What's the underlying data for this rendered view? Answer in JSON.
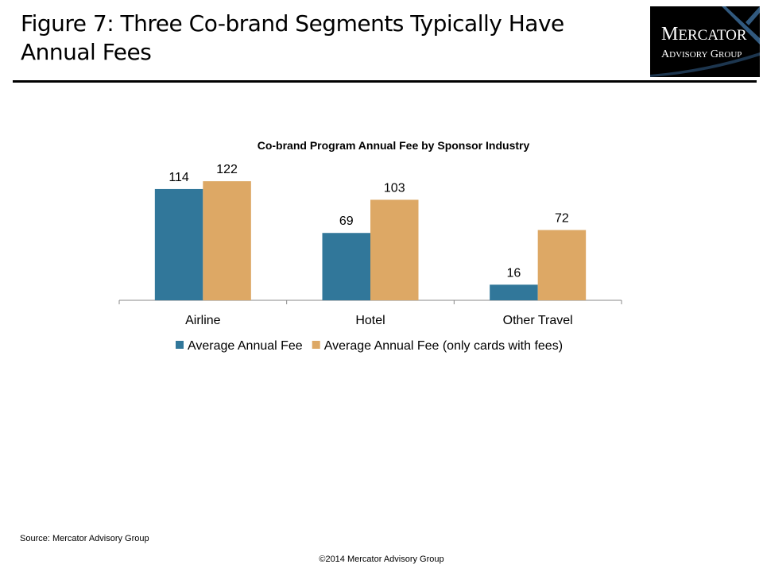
{
  "header": {
    "title": "Figure 7: Three Co-brand Segments Typically Have Annual Fees",
    "logo_text": [
      "Mercator",
      "Advisory Group"
    ]
  },
  "chart_data": {
    "type": "bar",
    "title": "Co-brand Program Annual Fee by Sponsor Industry",
    "categories": [
      "Airline",
      "Hotel",
      "Other Travel"
    ],
    "series": [
      {
        "name": "Average Annual Fee",
        "values": [
          114,
          69,
          16
        ],
        "color": "#31779A"
      },
      {
        "name": "Average Annual Fee (only cards with fees)",
        "values": [
          122,
          103,
          72
        ],
        "color": "#DDA865"
      }
    ],
    "ylim": [
      0,
      140
    ],
    "grid": false,
    "legend": "bottom",
    "data_labels": true
  },
  "footer": {
    "source": "Source:  Mercator Advisory Group",
    "copyright": "©2014 Mercator Advisory Group"
  }
}
